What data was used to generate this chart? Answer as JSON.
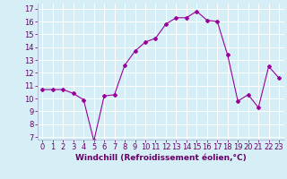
{
  "x": [
    0,
    1,
    2,
    3,
    4,
    5,
    6,
    7,
    8,
    9,
    10,
    11,
    12,
    13,
    14,
    15,
    16,
    17,
    18,
    19,
    20,
    21,
    22,
    23
  ],
  "y": [
    10.7,
    10.7,
    10.7,
    10.4,
    9.9,
    6.7,
    10.2,
    10.3,
    12.6,
    13.7,
    14.4,
    14.7,
    15.8,
    16.3,
    16.3,
    16.8,
    16.1,
    16.0,
    13.4,
    9.8,
    10.3,
    9.3,
    12.5,
    11.6
  ],
  "line_color": "#990099",
  "marker": "D",
  "marker_size": 2,
  "bg_color": "#d6eff7",
  "grid_color": "#ffffff",
  "xlabel": "Windchill (Refroidissement éolien,°C)",
  "xlabel_fontsize": 6.5,
  "tick_fontsize": 6,
  "ylim": [
    6.8,
    17.4
  ],
  "yticks": [
    7,
    8,
    9,
    10,
    11,
    12,
    13,
    14,
    15,
    16,
    17
  ],
  "xticks": [
    0,
    1,
    2,
    3,
    4,
    5,
    6,
    7,
    8,
    9,
    10,
    11,
    12,
    13,
    14,
    15,
    16,
    17,
    18,
    19,
    20,
    21,
    22,
    23
  ],
  "xlim": [
    -0.5,
    23.5
  ]
}
